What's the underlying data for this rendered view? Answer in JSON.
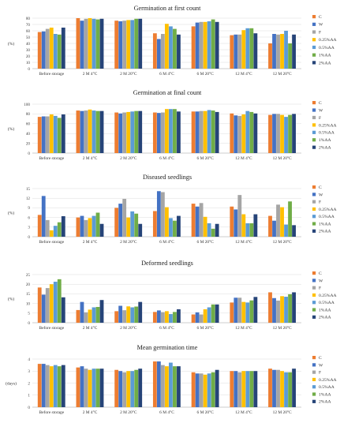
{
  "series_names": [
    "C",
    "W",
    "F",
    "0.25%AA",
    "0.5%AA",
    "1%AA",
    "2%AA"
  ],
  "series_colors": [
    "#ED7D31",
    "#4472C4",
    "#A5A5A5",
    "#FFC000",
    "#5B9BD5",
    "#70AD47",
    "#264478"
  ],
  "categories": [
    "Before storage",
    "2 M 4°C",
    "2 M 20°C",
    "6 M 4°C",
    "6 M 20°C",
    "12 M 4°C",
    "12 M 20°C"
  ],
  "chart_data": [
    {
      "type": "bar",
      "title": "Germination at first count",
      "ylabel": "(%)",
      "ylim": [
        0,
        80
      ],
      "yticks": [
        0,
        10,
        20,
        30,
        40,
        50,
        60,
        70,
        80
      ],
      "series": [
        {
          "name": "C",
          "values": [
            58,
            80,
            76,
            56,
            67,
            53,
            40
          ]
        },
        {
          "name": "W",
          "values": [
            59,
            76,
            75,
            47,
            73,
            54,
            55
          ]
        },
        {
          "name": "F",
          "values": [
            63,
            79,
            76,
            55,
            74,
            54,
            54
          ]
        },
        {
          "name": "0.25%AA",
          "values": [
            65,
            80,
            77,
            71,
            74,
            61,
            55
          ]
        },
        {
          "name": "0.5%AA",
          "values": [
            55,
            79,
            77,
            67,
            75,
            64,
            60
          ]
        },
        {
          "name": "1%AA",
          "values": [
            54,
            78,
            79,
            63,
            78,
            64,
            40
          ]
        },
        {
          "name": "2%AA",
          "values": [
            65,
            79,
            79,
            54,
            74,
            56,
            54
          ]
        }
      ]
    },
    {
      "type": "bar",
      "title": "Germination at final count",
      "ylabel": "(%)",
      "ylim": [
        0,
        100
      ],
      "yticks": [
        0,
        20,
        40,
        60,
        80,
        100
      ],
      "series": [
        {
          "name": "C",
          "values": [
            74,
            87,
            83,
            83,
            85,
            81,
            78
          ]
        },
        {
          "name": "W",
          "values": [
            75,
            86,
            81,
            82,
            85,
            77,
            80
          ]
        },
        {
          "name": "F",
          "values": [
            75,
            87,
            83,
            83,
            86,
            76,
            80
          ]
        },
        {
          "name": "0.25%AA",
          "values": [
            79,
            89,
            84,
            90,
            86,
            79,
            78
          ]
        },
        {
          "name": "0.5%AA",
          "values": [
            76,
            87,
            85,
            90,
            88,
            86,
            74
          ]
        },
        {
          "name": "1%AA",
          "values": [
            72,
            86,
            86,
            90,
            87,
            84,
            78
          ]
        },
        {
          "name": "2%AA",
          "values": [
            79,
            86,
            86,
            85,
            84,
            81,
            80
          ]
        }
      ]
    },
    {
      "type": "bar",
      "title": "Diseased seedlings",
      "ylabel": "(%)",
      "ylim": [
        0,
        15
      ],
      "yticks": [
        0,
        3,
        6,
        9,
        12,
        15
      ],
      "series": [
        {
          "name": "C",
          "values": [
            6.8,
            6.0,
            9.0,
            8.0,
            10.3,
            9.4,
            6.5
          ]
        },
        {
          "name": "W",
          "values": [
            12.7,
            6.5,
            10.3,
            14.2,
            9.4,
            8.5,
            5.0
          ]
        },
        {
          "name": "F",
          "values": [
            5.2,
            5.2,
            11.8,
            13.9,
            10.5,
            13.0,
            10.0
          ]
        },
        {
          "name": "0.25%AA",
          "values": [
            2.0,
            5.8,
            6.0,
            9.2,
            6.2,
            7.0,
            9.2
          ]
        },
        {
          "name": "0.5%AA",
          "values": [
            3.4,
            6.5,
            7.9,
            5.8,
            4.2,
            4.2,
            3.8
          ]
        },
        {
          "name": "1%AA",
          "values": [
            4.5,
            7.5,
            7.2,
            5.0,
            2.5,
            4.2,
            11.0
          ]
        },
        {
          "name": "2%AA",
          "values": [
            6.4,
            4.0,
            4.0,
            6.5,
            4.0,
            7.0,
            3.6
          ]
        }
      ]
    },
    {
      "type": "bar",
      "title": "Deformed seedlings",
      "ylabel": "(%)",
      "ylim": [
        0,
        25
      ],
      "yticks": [
        0,
        5,
        10,
        15,
        20,
        25
      ],
      "series": [
        {
          "name": "C",
          "values": [
            18.3,
            6.6,
            6.0,
            5.6,
            4.3,
            10.5,
            15.8
          ]
        },
        {
          "name": "W",
          "values": [
            14.6,
            10.8,
            8.8,
            6.4,
            5.4,
            13.0,
            12.8
          ]
        },
        {
          "name": "F",
          "values": [
            18.0,
            5.4,
            6.5,
            5.5,
            4.3,
            13.0,
            11.5
          ]
        },
        {
          "name": "0.25%AA",
          "values": [
            20.0,
            6.8,
            8.5,
            6.0,
            7.0,
            10.8,
            13.8
          ]
        },
        {
          "name": "0.5%AA",
          "values": [
            21.3,
            8.0,
            8.0,
            4.5,
            8.0,
            10.5,
            13.5
          ]
        },
        {
          "name": "1%AA",
          "values": [
            22.6,
            8.2,
            8.4,
            5.6,
            9.5,
            11.6,
            14.8
          ]
        },
        {
          "name": "2%AA",
          "values": [
            13.2,
            11.8,
            10.8,
            7.0,
            9.5,
            13.4,
            15.8
          ]
        }
      ]
    },
    {
      "type": "bar",
      "title": "Mean germination time",
      "ylabel": "(days)",
      "ylim": [
        0,
        4
      ],
      "yticks": [
        0,
        1,
        2,
        3,
        4
      ],
      "series": [
        {
          "name": "C",
          "values": [
            3.6,
            3.3,
            3.1,
            3.8,
            2.9,
            3.0,
            3.2
          ]
        },
        {
          "name": "W",
          "values": [
            3.6,
            3.4,
            3.0,
            3.8,
            2.8,
            3.0,
            3.1
          ]
        },
        {
          "name": "F",
          "values": [
            3.5,
            3.2,
            2.9,
            3.5,
            2.8,
            2.9,
            3.1
          ]
        },
        {
          "name": "0.25%AA",
          "values": [
            3.4,
            3.1,
            3.0,
            3.4,
            2.7,
            3.0,
            3.0
          ]
        },
        {
          "name": "0.5%AA",
          "values": [
            3.5,
            3.2,
            3.0,
            3.7,
            2.8,
            3.0,
            2.9
          ]
        },
        {
          "name": "1%AA",
          "values": [
            3.4,
            3.2,
            3.1,
            3.4,
            2.9,
            3.0,
            2.9
          ]
        },
        {
          "name": "2%AA",
          "values": [
            3.5,
            3.2,
            3.2,
            3.4,
            3.1,
            3.0,
            3.2
          ]
        }
      ]
    }
  ]
}
